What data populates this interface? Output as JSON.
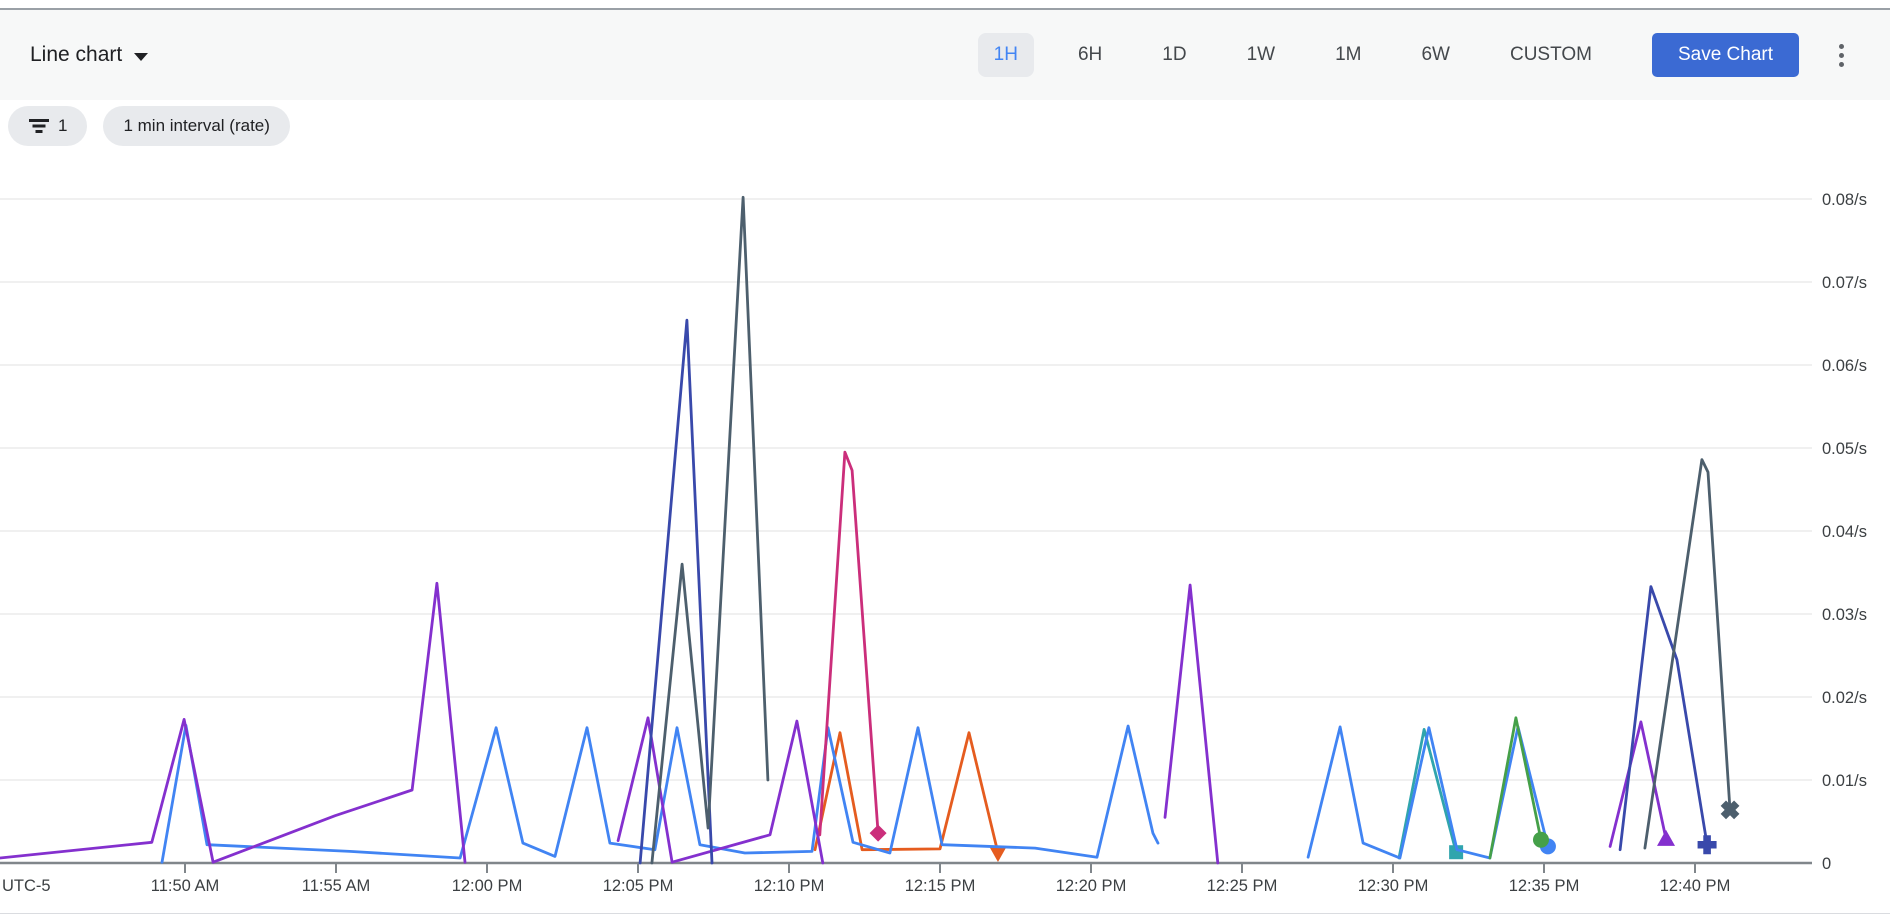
{
  "header": {
    "chart_type_label": "Line chart",
    "time_ranges": [
      {
        "label": "1H",
        "selected": true
      },
      {
        "label": "6H",
        "selected": false
      },
      {
        "label": "1D",
        "selected": false
      },
      {
        "label": "1W",
        "selected": false
      },
      {
        "label": "1M",
        "selected": false
      },
      {
        "label": "6W",
        "selected": false
      },
      {
        "label": "CUSTOM",
        "selected": false
      }
    ],
    "save_button_label": "Save Chart",
    "accent_color": "#3b6ad3",
    "selected_range_color": "#4285f4"
  },
  "filters": {
    "filter_chip_count": "1",
    "interval_chip_label": "1 min interval (rate)"
  },
  "chart_data": {
    "type": "line",
    "title": "",
    "grid": "horizontal-only",
    "legend": "none",
    "x_axis": {
      "timezone_label": "UTC-5",
      "unit": "minutes after 11:45 AM",
      "range": [
        -1.13,
        58.87
      ],
      "ticks": [
        {
          "m": 5,
          "label": "11:50 AM"
        },
        {
          "m": 10,
          "label": "11:55 AM"
        },
        {
          "m": 15,
          "label": "12:00 PM"
        },
        {
          "m": 20,
          "label": "12:05 PM"
        },
        {
          "m": 25,
          "label": "12:10 PM"
        },
        {
          "m": 30,
          "label": "12:15 PM"
        },
        {
          "m": 35,
          "label": "12:20 PM"
        },
        {
          "m": 40,
          "label": "12:25 PM"
        },
        {
          "m": 45,
          "label": "12:30 PM"
        },
        {
          "m": 50,
          "label": "12:35 PM"
        },
        {
          "m": 55,
          "label": "12:40 PM"
        }
      ]
    },
    "y_axis": {
      "unit": "/s",
      "range": [
        0,
        0.08
      ],
      "ticks": [
        {
          "v": 0,
          "label": "0"
        },
        {
          "v": 0.01,
          "label": "0.01/s"
        },
        {
          "v": 0.02,
          "label": "0.02/s"
        },
        {
          "v": 0.03,
          "label": "0.03/s"
        },
        {
          "v": 0.04,
          "label": "0.04/s"
        },
        {
          "v": 0.05,
          "label": "0.05/s"
        },
        {
          "v": 0.06,
          "label": "0.06/s"
        },
        {
          "v": 0.07,
          "label": "0.07/s"
        },
        {
          "v": 0.08,
          "label": "0.08/s"
        }
      ]
    },
    "series": [
      {
        "name": "series-orange",
        "color": "#e55c1f",
        "end_marker": "triangle-down",
        "segments": [
          [
            [
              25.86,
              0.0016
            ],
            [
              26.69,
              0.0157
            ],
            [
              27.42,
              0.0016
            ],
            [
              30.0,
              0.0017
            ],
            [
              30.96,
              0.0157
            ],
            [
              31.92,
              0.0012
            ]
          ]
        ]
      },
      {
        "name": "series-teal",
        "color": "#30a5ad",
        "end_marker": "square",
        "segments": [
          [
            [
              45.2,
              0.0006
            ],
            [
              46.03,
              0.0161
            ],
            [
              47.09,
              0.0013
            ]
          ]
        ]
      },
      {
        "name": "series-blue",
        "color": "#4184f3",
        "end_marker": "circle",
        "segments": [
          [
            [
              4.24,
              0.0001
            ],
            [
              5.03,
              0.0166
            ],
            [
              5.73,
              0.0022
            ],
            [
              10.46,
              0.0014
            ],
            [
              14.11,
              0.0006
            ],
            [
              15.3,
              0.0163
            ],
            [
              16.19,
              0.0024
            ],
            [
              17.25,
              0.0008
            ],
            [
              18.31,
              0.0163
            ],
            [
              19.07,
              0.0024
            ],
            [
              20.56,
              0.0016
            ],
            [
              21.29,
              0.0163
            ],
            [
              22.05,
              0.0022
            ],
            [
              23.54,
              0.0012
            ],
            [
              25.76,
              0.0014
            ],
            [
              26.29,
              0.0163
            ],
            [
              27.12,
              0.0025
            ],
            [
              28.34,
              0.0012
            ],
            [
              29.27,
              0.0163
            ],
            [
              30.07,
              0.0022
            ],
            [
              33.15,
              0.0018
            ],
            [
              35.2,
              0.0007
            ],
            [
              36.23,
              0.0165
            ],
            [
              37.05,
              0.0036
            ],
            [
              37.22,
              0.0024
            ]
          ],
          [
            [
              42.19,
              0.0007
            ],
            [
              43.25,
              0.0164
            ],
            [
              44.01,
              0.0024
            ],
            [
              45.23,
              0.0006
            ],
            [
              46.19,
              0.0163
            ],
            [
              47.12,
              0.0016
            ],
            [
              48.21,
              0.0006
            ],
            [
              49.14,
              0.0164
            ],
            [
              50.13,
              0.002
            ]
          ]
        ]
      },
      {
        "name": "series-green",
        "color": "#45a049",
        "end_marker": "circle",
        "segments": [
          [
            [
              48.21,
              0.0006
            ],
            [
              49.07,
              0.0175
            ],
            [
              49.9,
              0.0028
            ]
          ]
        ]
      },
      {
        "name": "series-purple",
        "color": "#8430ce",
        "end_marker": "triangle-up",
        "segments": [
          [
            [
              -1.13,
              0.0006
            ],
            [
              3.9,
              0.0025
            ],
            [
              4.97,
              0.0173
            ],
            [
              5.93,
              0.0001
            ],
            [
              9.97,
              0.0057
            ],
            [
              12.52,
              0.0088
            ],
            [
              13.34,
              0.0337
            ],
            [
              14.27,
              0.0001
            ]
          ],
          [
            [
              19.34,
              0.0027
            ],
            [
              20.33,
              0.0175
            ],
            [
              21.13,
              0.0001
            ],
            [
              24.37,
              0.0034
            ],
            [
              25.26,
              0.0171
            ],
            [
              26.12,
              0
            ]
          ],
          [
            [
              37.45,
              0.0055
            ],
            [
              38.28,
              0.0335
            ],
            [
              39.2,
              0
            ]
          ],
          [
            [
              52.19,
              0.002
            ],
            [
              53.21,
              0.017
            ],
            [
              54.04,
              0.0029
            ]
          ]
        ]
      },
      {
        "name": "series-navy",
        "color": "#3949ab",
        "end_marker": "plus",
        "segments": [
          [
            [
              20.07,
              0
            ],
            [
              21.62,
              0.0654
            ],
            [
              22.45,
              0
            ]
          ],
          [
            [
              52.52,
              0.0016
            ],
            [
              53.54,
              0.0333
            ],
            [
              54.4,
              0.0245
            ],
            [
              55.4,
              0.0022
            ]
          ]
        ]
      },
      {
        "name": "series-slate",
        "color": "#4d5f6d",
        "end_marker": "x",
        "segments": [
          [
            [
              20.46,
              0
            ],
            [
              21.46,
              0.036
            ],
            [
              22.32,
              0.0042
            ],
            [
              23.48,
              0.0802
            ],
            [
              24.3,
              0.01
            ]
          ],
          [
            [
              53.34,
              0.0018
            ],
            [
              55.23,
              0.0486
            ],
            [
              55.43,
              0.0471
            ],
            [
              56.16,
              0.0064
            ]
          ]
        ]
      },
      {
        "name": "series-pink",
        "color": "#cb2e7b",
        "end_marker": "diamond",
        "segments": [
          [
            [
              26.02,
              0.0034
            ],
            [
              26.85,
              0.0495
            ],
            [
              27.09,
              0.0473
            ],
            [
              27.95,
              0.0036
            ]
          ]
        ]
      }
    ]
  }
}
